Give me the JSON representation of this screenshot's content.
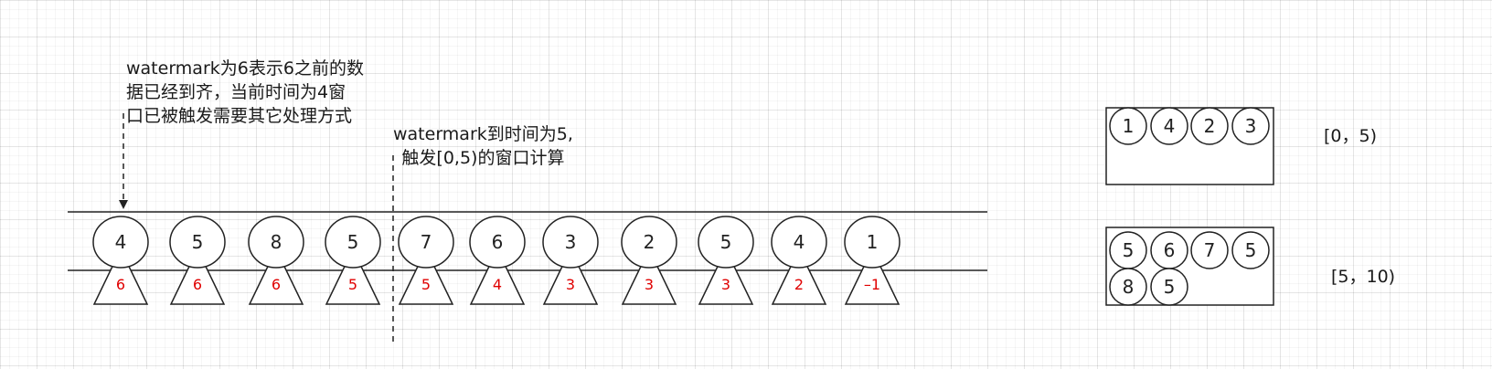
{
  "annotations": {
    "left_note": [
      "watermark为6表示6之前的数",
      "据已经到齐，当前时间为4窗",
      "口已被触发需要其它处理方式"
    ],
    "trigger_note": [
      "watermark到时间为5,",
      "触发[0,5)的窗口计算"
    ]
  },
  "stream": {
    "events": [
      {
        "value": "4",
        "watermark": "6"
      },
      {
        "value": "5",
        "watermark": "6"
      },
      {
        "value": "8",
        "watermark": "6"
      },
      {
        "value": "5",
        "watermark": "5"
      },
      {
        "value": "7",
        "watermark": "5"
      },
      {
        "value": "6",
        "watermark": "4"
      },
      {
        "value": "3",
        "watermark": "3"
      },
      {
        "value": "2",
        "watermark": "3"
      },
      {
        "value": "5",
        "watermark": "3"
      },
      {
        "value": "4",
        "watermark": "2"
      },
      {
        "value": "1",
        "watermark": "–1"
      }
    ]
  },
  "windows": [
    {
      "label": "[0，5)",
      "items": [
        "1",
        "4",
        "2",
        "3"
      ]
    },
    {
      "label": "[5，10)",
      "items": [
        "5",
        "6",
        "7",
        "5",
        "8",
        "5"
      ]
    }
  ],
  "colors": {
    "stroke": "#222222",
    "watermark_text": "#e00000",
    "event_fill": "#ffffff"
  }
}
